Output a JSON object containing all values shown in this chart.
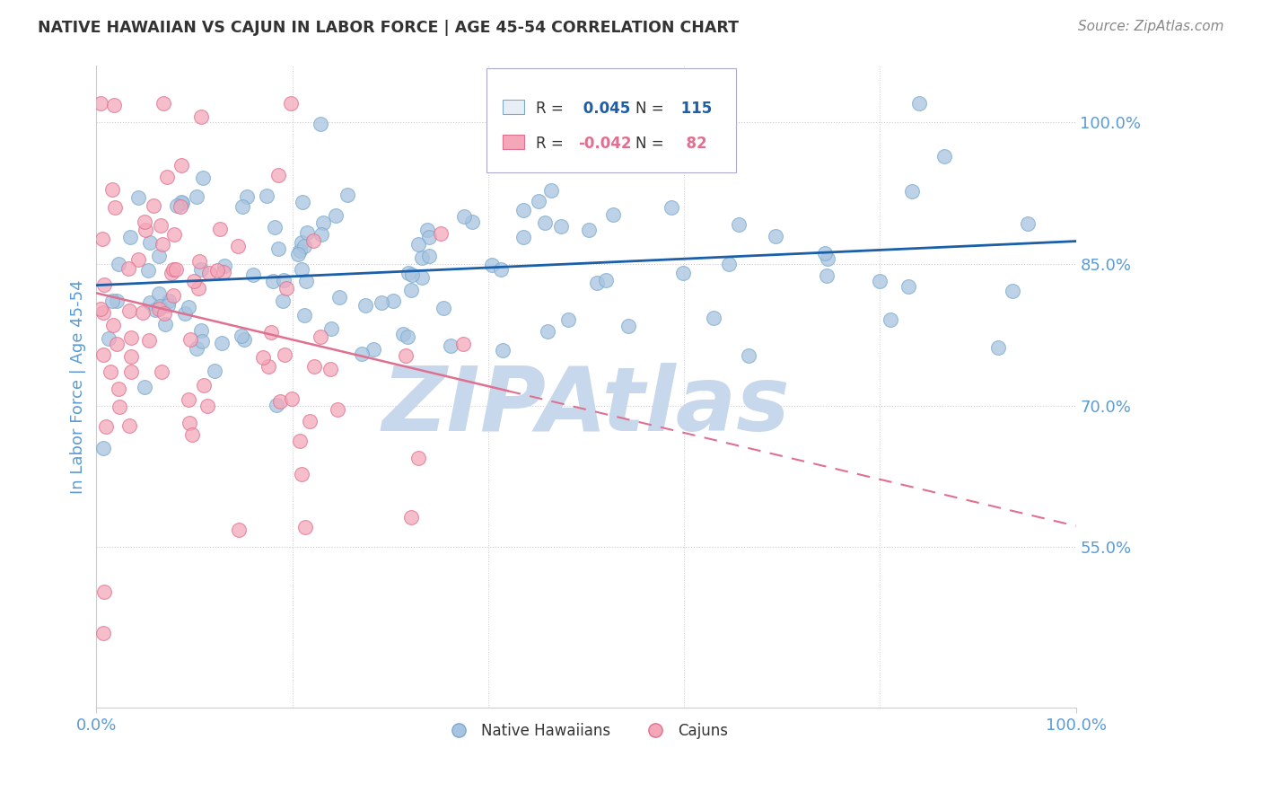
{
  "title": "NATIVE HAWAIIAN VS CAJUN IN LABOR FORCE | AGE 45-54 CORRELATION CHART",
  "source": "Source: ZipAtlas.com",
  "ylabel": "In Labor Force | Age 45-54",
  "xlim": [
    0.0,
    1.0
  ],
  "ylim": [
    0.38,
    1.06
  ],
  "yticks": [
    0.55,
    0.7,
    0.85,
    1.0
  ],
  "ytick_labels": [
    "55.0%",
    "70.0%",
    "85.0%",
    "100.0%"
  ],
  "xtick_labels": [
    "0.0%",
    "100.0%"
  ],
  "xticks": [
    0.0,
    1.0
  ],
  "blue_R": 0.045,
  "blue_N": 115,
  "pink_R": -0.042,
  "pink_N": 82,
  "blue_color": "#a8c4e0",
  "blue_edge_color": "#7aaacf",
  "pink_color": "#f4a7b9",
  "pink_edge_color": "#e07090",
  "blue_line_color": "#1a5fa8",
  "pink_line_color": "#e07090",
  "legend_label_blue": "Native Hawaiians",
  "legend_label_pink": "Cajuns",
  "background_color": "#ffffff",
  "grid_color": "#cccccc",
  "watermark": "ZIPAtlas",
  "watermark_color": "#c8d8ec",
  "title_color": "#333333",
  "tick_label_color": "#5b9bd5",
  "legend_box_color": "#e8eef5",
  "legend_border_color": "#aaaacc"
}
